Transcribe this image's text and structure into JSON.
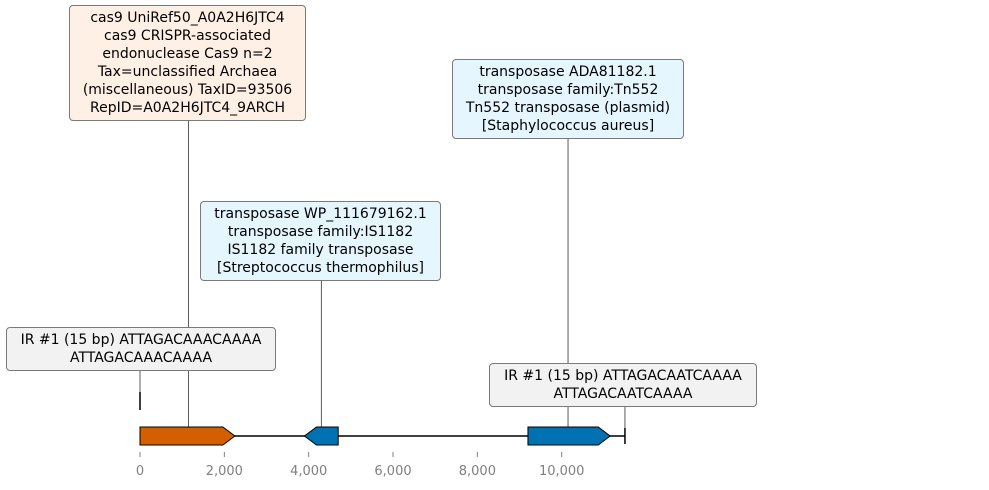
{
  "sequence_length": 11500,
  "axis": {
    "ticks": [
      0,
      2000,
      4000,
      6000,
      8000,
      10000
    ],
    "tick_labels": [
      "0",
      "2,000",
      "4,000",
      "6,000",
      "8,000",
      "10,000"
    ]
  },
  "features": [
    {
      "id": "cas9",
      "start": 0,
      "end": 2250,
      "strand": "+",
      "color": "#d45f00"
    },
    {
      "id": "tn1182",
      "start": 3900,
      "end": 4700,
      "strand": "-",
      "color": "#0072b2"
    },
    {
      "id": "tn552",
      "start": 9200,
      "end": 11150,
      "strand": "+",
      "color": "#0072b2"
    }
  ],
  "ir_markers": [
    0,
    11500
  ],
  "annotations": [
    {
      "anchor": 1150,
      "bg": "#fff0e5",
      "lines": [
        "cas9 UniRef50_A0A2H6JTC4",
        "cas9 CRISPR-associated",
        "endonuclease Cas9 n=2",
        "Tax=unclassified Archaea",
        "(miscellaneous) TaxID=93506",
        "RepID=A0A2H6JTC4_9ARCH"
      ]
    },
    {
      "anchor": 10150,
      "bg": "#e5f6ff",
      "lines": [
        "transposase ADA81182.1",
        "transposase family:Tn552",
        "Tn552 transposase (plasmid)",
        "[Staphylococcus aureus]"
      ]
    },
    {
      "anchor": 4300,
      "bg": "#e5f6ff",
      "lines": [
        "transposase WP_111679162.1",
        "transposase family:IS1182",
        "IS1182 family transposase",
        "[Streptococcus thermophilus]"
      ]
    },
    {
      "anchor": 0,
      "bg": "#f2f2f2",
      "lines": [
        "IR #1 (15 bp) ATTAGACAAACAAAA",
        "ATTAGACAAACAAAA"
      ]
    },
    {
      "anchor": 11500,
      "bg": "#f2f2f2",
      "lines": [
        "IR #1 (15 bp) ATTAGACAATCAAAA",
        "ATTAGACAATCAAAA"
      ]
    }
  ]
}
